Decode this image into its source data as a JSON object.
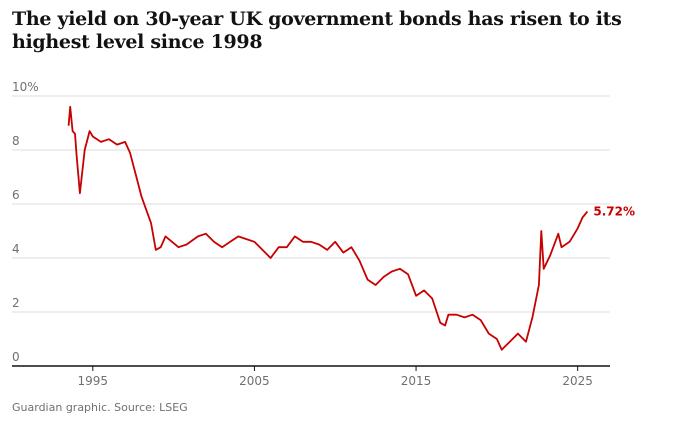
{
  "chart_data": {
    "type": "line",
    "title": "The yield on 30-year UK government bonds has risen to its highest level since 1998",
    "source": "Guardian graphic. Source: LSEG",
    "x": [
      1993.5,
      1993.6,
      1993.75,
      1993.9,
      1994.0,
      1994.2,
      1994.5,
      1994.8,
      1995.0,
      1995.5,
      1996.0,
      1996.5,
      1997.0,
      1997.3,
      1997.7,
      1998.0,
      1998.3,
      1998.6,
      1998.9,
      1999.2,
      1999.5,
      1999.9,
      2000.3,
      2000.8,
      2001.5,
      2002.0,
      2002.5,
      2003.0,
      2003.5,
      2004.0,
      2004.5,
      2005.0,
      2005.5,
      2006.0,
      2006.5,
      2007.0,
      2007.5,
      2008.0,
      2008.5,
      2009.0,
      2009.5,
      2010.0,
      2010.5,
      2011.0,
      2011.5,
      2012.0,
      2012.5,
      2013.0,
      2013.5,
      2014.0,
      2014.5,
      2015.0,
      2015.5,
      2016.0,
      2016.5,
      2016.8,
      2017.0,
      2017.5,
      2018.0,
      2018.5,
      2019.0,
      2019.5,
      2020.0,
      2020.3,
      2020.8,
      2021.3,
      2021.8,
      2022.2,
      2022.6,
      2022.75,
      2022.9,
      2023.3,
      2023.8,
      2024.0,
      2024.5,
      2025.0,
      2025.3,
      2025.6
    ],
    "series": [
      {
        "name": "30-year UK government bond yield",
        "color": "#c70000",
        "values": [
          8.9,
          9.6,
          8.7,
          8.6,
          7.8,
          6.4,
          8.0,
          8.7,
          8.5,
          8.3,
          8.4,
          8.2,
          8.3,
          7.9,
          7.0,
          6.3,
          5.8,
          5.3,
          4.3,
          4.4,
          4.8,
          4.6,
          4.4,
          4.5,
          4.8,
          4.9,
          4.6,
          4.4,
          4.6,
          4.8,
          4.7,
          4.6,
          4.3,
          4.0,
          4.4,
          4.4,
          4.8,
          4.6,
          4.6,
          4.5,
          4.3,
          4.6,
          4.2,
          4.4,
          3.9,
          3.2,
          3.0,
          3.3,
          3.5,
          3.6,
          3.4,
          2.6,
          2.8,
          2.5,
          1.6,
          1.5,
          1.9,
          1.9,
          1.8,
          1.9,
          1.7,
          1.2,
          1.0,
          0.6,
          0.9,
          1.2,
          0.9,
          1.8,
          3.0,
          5.0,
          3.6,
          4.1,
          4.9,
          4.4,
          4.6,
          5.1,
          5.5,
          5.72
        ]
      }
    ],
    "annotation": {
      "x": 2025.6,
      "y": 5.72,
      "label": "5.72%"
    },
    "xlim": [
      1990,
      2027
    ],
    "xticks": [
      1995,
      2005,
      2015,
      2025
    ],
    "ylim": [
      0,
      10
    ],
    "yticks": [
      0,
      2,
      4,
      6,
      8,
      {
        "value": 10,
        "label": "10%"
      }
    ],
    "grid": true
  }
}
